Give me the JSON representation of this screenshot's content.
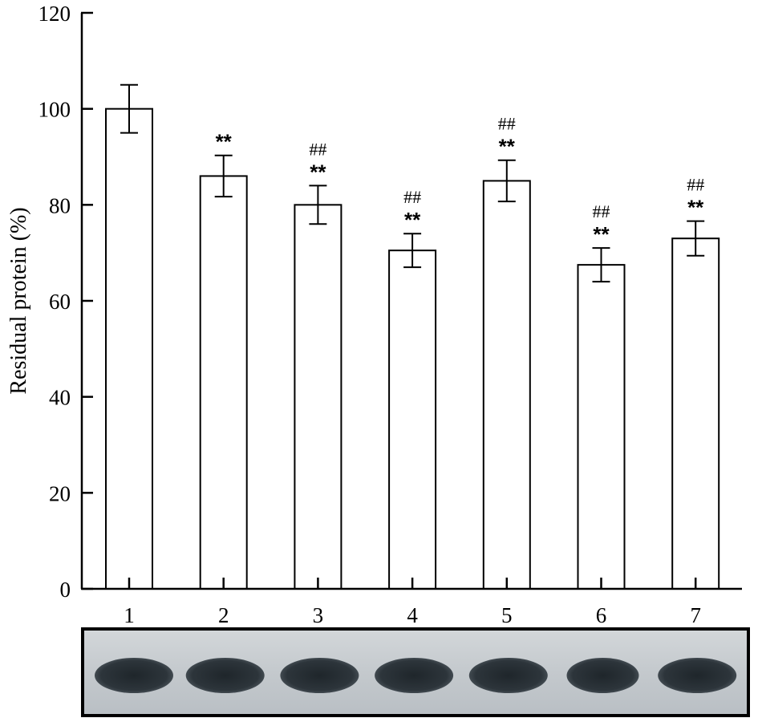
{
  "chart_data": {
    "type": "bar",
    "categories": [
      "1",
      "2",
      "3",
      "4",
      "5",
      "6",
      "7"
    ],
    "values": [
      100,
      86,
      80,
      70.5,
      85,
      67.5,
      73
    ],
    "errors": [
      5,
      4.3,
      4,
      3.5,
      4.3,
      3.5,
      3.6
    ],
    "star_marks": [
      "",
      "**",
      "**",
      "**",
      "**",
      "**",
      "**"
    ],
    "hash_marks": [
      "",
      "",
      "##",
      "##",
      "##",
      "##",
      "##"
    ],
    "ylabel": "Residual protein (%)",
    "xlabel": "",
    "title": "",
    "ylim": [
      0,
      120
    ],
    "yticks": [
      0,
      20,
      40,
      60,
      80,
      100,
      120
    ],
    "grid": false,
    "bar_fill": "#ffffff",
    "bar_stroke": "#000000",
    "gel_background": "#c9ced2",
    "gel_band": "#2a3137",
    "gel_frame": "#000000"
  }
}
